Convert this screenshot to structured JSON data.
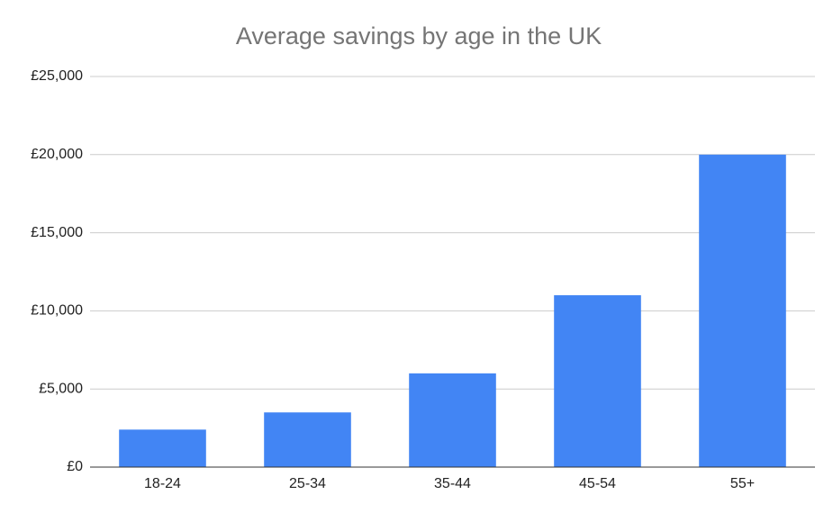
{
  "chart_data": {
    "type": "bar",
    "title": "Average savings by age in the UK",
    "categories": [
      "18-24",
      "25-34",
      "35-44",
      "45-54",
      "55+"
    ],
    "values": [
      2400,
      3500,
      6000,
      11000,
      20000
    ],
    "color": "#4285f4",
    "ylim": [
      0,
      25000
    ],
    "yticks": [
      {
        "value": 0,
        "label": "£0"
      },
      {
        "value": 5000,
        "label": "£5,000"
      },
      {
        "value": 10000,
        "label": "£10,000"
      },
      {
        "value": 15000,
        "label": "£15,000"
      },
      {
        "value": 20000,
        "label": "£20,000"
      },
      {
        "value": 25000,
        "label": "£25,000"
      }
    ],
    "grid": true
  }
}
